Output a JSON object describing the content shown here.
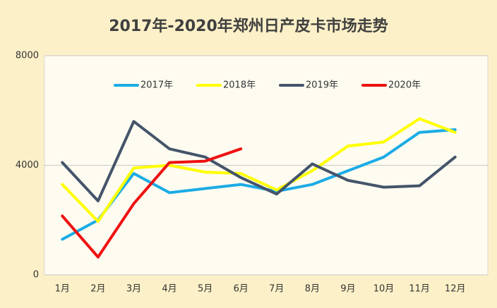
{
  "chart_data": {
    "type": "line",
    "title": "2017年-2020年郑州日产皮卡市场走势",
    "categories": [
      "1月",
      "2月",
      "3月",
      "4月",
      "5月",
      "6月",
      "7月",
      "8月",
      "9月",
      "10月",
      "11月",
      "12月"
    ],
    "series": [
      {
        "name": "2017年",
        "color": "#1aace6",
        "values": [
          1300,
          2000,
          3700,
          3000,
          3150,
          3300,
          3050,
          3300,
          3800,
          4300,
          5200,
          5300
        ]
      },
      {
        "name": "2018年",
        "color": "#ffff00",
        "values": [
          3300,
          1950,
          3900,
          4000,
          3750,
          3700,
          3100,
          3800,
          4700,
          4850,
          5700,
          5200
        ]
      },
      {
        "name": "2019年",
        "color": "#44546a",
        "values": [
          4100,
          2700,
          5600,
          4600,
          4300,
          3550,
          2950,
          4050,
          3450,
          3200,
          3250,
          4300
        ]
      },
      {
        "name": "2020年",
        "color": "#ee1111",
        "values": [
          2150,
          650,
          2600,
          4100,
          4150,
          4600,
          null,
          null,
          null,
          null,
          null,
          null
        ]
      }
    ],
    "ylim": [
      0,
      8000
    ],
    "yticks": [
      0,
      4000,
      8000
    ],
    "grid": true,
    "legend": "top"
  }
}
